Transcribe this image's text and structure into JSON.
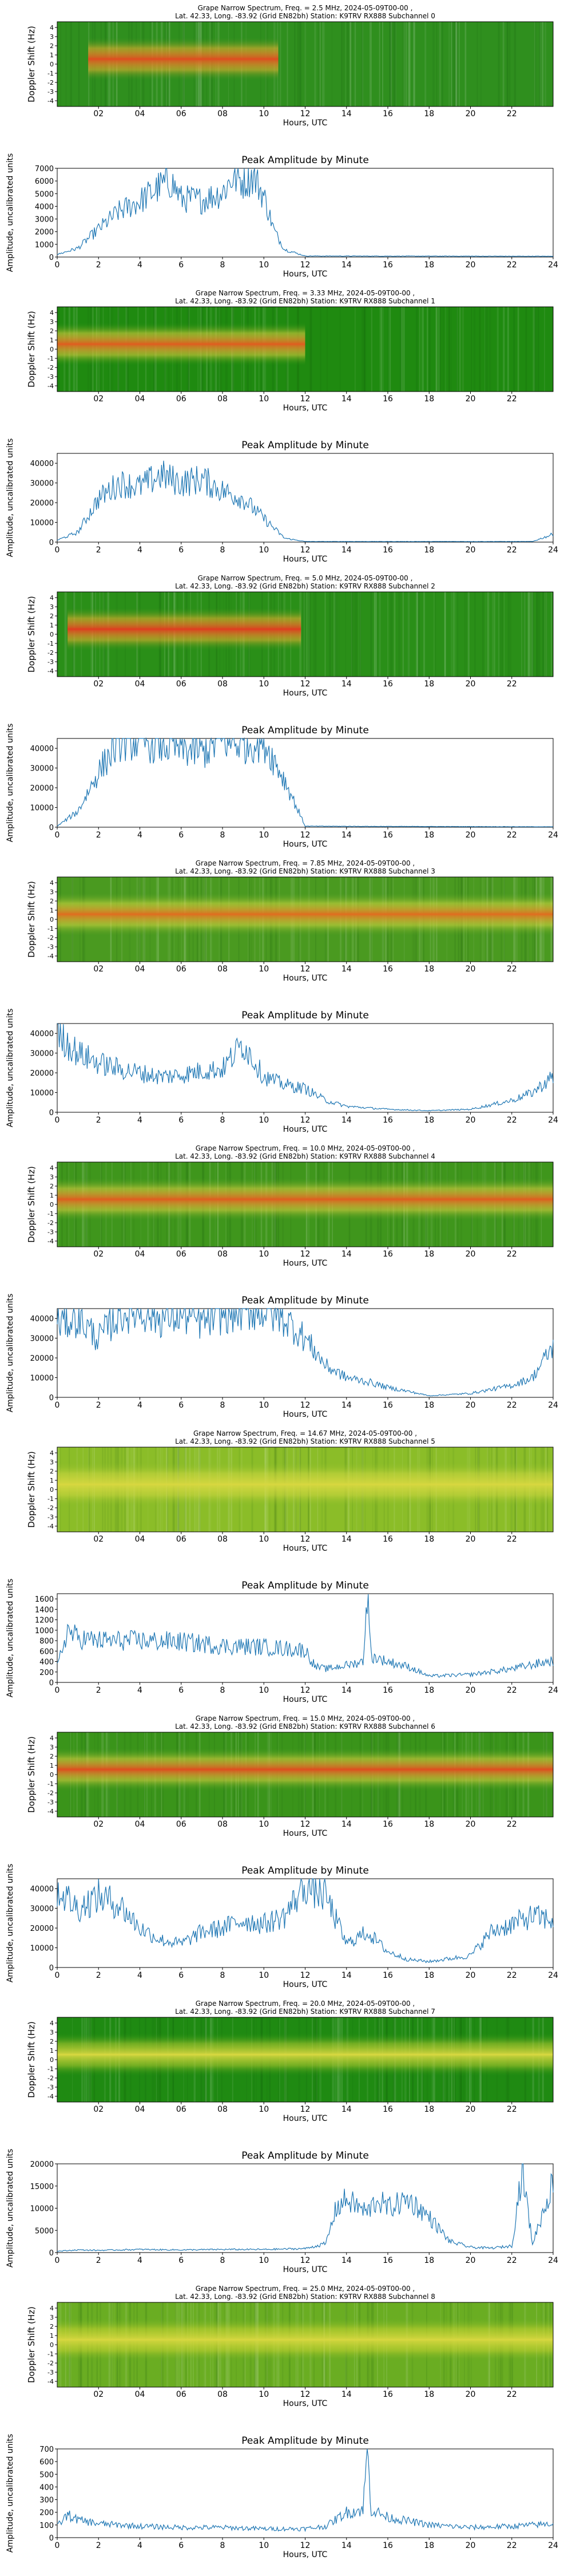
{
  "chart_data": {
    "type": "spectrogram-and-line",
    "x_tick_labels_spec": [
      "02",
      "04",
      "06",
      "08",
      "10",
      "12",
      "14",
      "16",
      "18",
      "20",
      "22"
    ],
    "x_tick_labels_amp": [
      "0",
      "2",
      "4",
      "6",
      "8",
      "10",
      "12",
      "14",
      "16",
      "18",
      "20",
      "22",
      "24"
    ],
    "x_axis_label": "Hours, UTC",
    "spec_y_label": "Doppler Shift (Hz)",
    "spec_y_ticks": [
      "4",
      "3",
      "2",
      "1",
      "0",
      "-1",
      "-2",
      "-3",
      "-4"
    ],
    "amp_title": "Peak Amplitude by Minute",
    "amp_y_label": "Amplitude, uncalibrated units",
    "x_range_hours": [
      0,
      24
    ],
    "panels": [
      {
        "title_line1": "Grape Narrow Spectrum, Freq. = 2.5 MHz, 2024-05-09T00-00 ,",
        "title_line2": "Lat.  42.33, Long. -83.92 (Grid EN82bh) Station: K9TRV RX888 Subchannel 0",
        "spec_colors": {
          "background": "#2f8f1e",
          "active": "#f0b030",
          "core": "#e05020"
        },
        "active_hours": [
          1.5,
          10.7
        ],
        "amp_ylim": [
          0,
          7000
        ],
        "amp_yticks": [
          0,
          1000,
          2000,
          3000,
          4000,
          5000,
          6000,
          7000
        ],
        "amp_hours": [
          0,
          1,
          2,
          3,
          4,
          5,
          5.5,
          6,
          7,
          8,
          8.5,
          9,
          9.5,
          10,
          10.5,
          11,
          12,
          24
        ],
        "amp_values": [
          200,
          700,
          2200,
          3600,
          4400,
          5600,
          6000,
          4600,
          4500,
          5100,
          6300,
          6000,
          6400,
          4800,
          2100,
          600,
          80,
          60
        ]
      },
      {
        "title_line1": "Grape Narrow Spectrum, Freq. = 3.33 MHz, 2024-05-09T00-00 ,",
        "title_line2": "Lat.  42.33, Long. -83.92 (Grid EN82bh) Station: K9TRV RX888 Subchannel 1",
        "spec_colors": {
          "background": "#1f8a10",
          "active": "#e8d040",
          "core": "#e06020"
        },
        "active_hours": [
          0,
          12
        ],
        "amp_ylim": [
          0,
          45000
        ],
        "amp_yticks": [
          0,
          10000,
          20000,
          30000,
          40000
        ],
        "amp_hours": [
          0,
          1,
          2,
          3,
          4,
          5,
          6,
          7,
          8,
          9,
          10,
          11,
          12,
          23,
          24
        ],
        "amp_values": [
          1000,
          5000,
          22000,
          30000,
          28000,
          34000,
          30000,
          32000,
          26000,
          22000,
          12000,
          2000,
          300,
          300,
          4000
        ]
      },
      {
        "title_line1": "Grape Narrow Spectrum, Freq. = 5.0 MHz, 2024-05-09T00-00 ,",
        "title_line2": "Lat.  42.33, Long. -83.92 (Grid EN82bh) Station: K9TRV RX888 Subchannel 2",
        "spec_colors": {
          "background": "#2a8f18",
          "active": "#f0b030",
          "core": "#e04020"
        },
        "active_hours": [
          0.5,
          11.8
        ],
        "amp_ylim": [
          0,
          45000
        ],
        "amp_yticks": [
          0,
          10000,
          20000,
          30000,
          40000
        ],
        "amp_hours": [
          0,
          1,
          2,
          3,
          4,
          5,
          6,
          7,
          8,
          9,
          10,
          11,
          12,
          24
        ],
        "amp_values": [
          500,
          8000,
          28000,
          44000,
          44000,
          42000,
          40000,
          38000,
          44000,
          42000,
          44000,
          24000,
          500,
          200
        ]
      },
      {
        "title_line1": "Grape Narrow Spectrum, Freq. = 7.85 MHz, 2024-05-09T00-00 ,",
        "title_line2": "Lat.  42.33, Long. -83.92 (Grid EN82bh) Station: K9TRV RX888 Subchannel 3",
        "spec_colors": {
          "background": "#4a9a20",
          "active": "#d8d840",
          "core": "#e07020"
        },
        "active_hours": [
          0,
          24
        ],
        "amp_ylim": [
          0,
          45000
        ],
        "amp_yticks": [
          0,
          10000,
          20000,
          30000,
          40000
        ],
        "amp_hours": [
          0,
          1,
          2,
          3,
          4,
          5,
          6,
          7,
          8,
          9,
          10,
          11,
          12,
          13,
          14,
          16,
          18,
          20,
          22,
          23,
          24
        ],
        "amp_values": [
          40000,
          30000,
          25000,
          22000,
          20000,
          18000,
          19000,
          21000,
          22000,
          35000,
          18000,
          14000,
          12000,
          6000,
          3000,
          1500,
          800,
          1500,
          6000,
          10000,
          18000
        ]
      },
      {
        "title_line1": "Grape Narrow Spectrum, Freq. = 10.0 MHz, 2024-05-09T00-00 ,",
        "title_line2": "Lat.  42.33, Long. -83.92 (Grid EN82bh) Station: K9TRV RX888 Subchannel 4",
        "spec_colors": {
          "background": "#3f961c",
          "active": "#e0d040",
          "core": "#e06020"
        },
        "active_hours": [
          0,
          24
        ],
        "amp_ylim": [
          0,
          45000
        ],
        "amp_yticks": [
          0,
          10000,
          20000,
          30000,
          40000
        ],
        "amp_hours": [
          0,
          1,
          2,
          3,
          4,
          5,
          6,
          7,
          8,
          9,
          10,
          11,
          12,
          13,
          14,
          15,
          16,
          17,
          18,
          20,
          22,
          23,
          24
        ],
        "amp_values": [
          38000,
          40000,
          30000,
          42000,
          44000,
          40000,
          42000,
          38000,
          42000,
          44000,
          44000,
          40000,
          30000,
          16000,
          10000,
          8000,
          5000,
          3000,
          800,
          2000,
          6000,
          10000,
          26000
        ]
      },
      {
        "title_line1": "Grape Narrow Spectrum, Freq. = 14.67 MHz, 2024-05-09T00-00 ,",
        "title_line2": "Lat.  42.33, Long. -83.92 (Grid EN82bh) Station: K9TRV RX888 Subchannel 5",
        "spec_colors": {
          "background": "#8bbd28",
          "active": "#d0d840",
          "core": "#d8d840"
        },
        "active_hours": [
          0,
          24
        ],
        "amp_ylim": [
          0,
          1700
        ],
        "amp_yticks": [
          0,
          200,
          400,
          600,
          800,
          1000,
          1200,
          1400,
          1600
        ],
        "amp_hours": [
          0,
          0.5,
          1,
          2,
          4,
          6,
          8,
          10,
          12,
          12.5,
          13,
          14,
          14.8,
          15,
          15.2,
          16,
          17,
          18,
          20,
          22,
          24
        ],
        "amp_values": [
          300,
          1000,
          850,
          800,
          800,
          780,
          700,
          680,
          620,
          300,
          260,
          330,
          400,
          1700,
          500,
          400,
          300,
          120,
          150,
          260,
          420
        ]
      },
      {
        "title_line1": "Grape Narrow Spectrum, Freq. = 15.0 MHz, 2024-05-09T00-00 ,",
        "title_line2": "Lat.  42.33, Long. -83.92 (Grid EN82bh) Station: K9TRV RX888 Subchannel 6",
        "spec_colors": {
          "background": "#3a941a",
          "active": "#e0d040",
          "core": "#e05020"
        },
        "active_hours": [
          0,
          24
        ],
        "amp_ylim": [
          0,
          45000
        ],
        "amp_yticks": [
          0,
          10000,
          20000,
          30000,
          40000
        ],
        "amp_hours": [
          0,
          1,
          2,
          3,
          4,
          5,
          6,
          7,
          8,
          9,
          10,
          11,
          12,
          13,
          14,
          15,
          16,
          17,
          18,
          20,
          21,
          22,
          23,
          24
        ],
        "amp_values": [
          40000,
          30000,
          36000,
          32000,
          20000,
          14000,
          12000,
          18000,
          20000,
          24000,
          22000,
          26000,
          42000,
          36000,
          12000,
          18000,
          8000,
          4000,
          3000,
          6000,
          18000,
          22000,
          26000,
          24000
        ]
      },
      {
        "title_line1": "Grape Narrow Spectrum, Freq. = 20.0 MHz, 2024-05-09T00-00 ,",
        "title_line2": "Lat.  42.33, Long. -83.92 (Grid EN82bh) Station: K9TRV RX888 Subchannel 7",
        "spec_colors": {
          "background": "#1f8a12",
          "active": "#b8cc30",
          "core": "#d8d840"
        },
        "active_hours": [
          0,
          24
        ],
        "amp_ylim": [
          0,
          20000
        ],
        "amp_yticks": [
          0,
          5000,
          10000,
          15000,
          20000
        ],
        "amp_hours": [
          0,
          1,
          2,
          4,
          6,
          8,
          10,
          12,
          13,
          13.5,
          14,
          15,
          15.5,
          16,
          17,
          18,
          19,
          20,
          21,
          22,
          22.5,
          23,
          24
        ],
        "amp_values": [
          300,
          600,
          500,
          700,
          600,
          700,
          700,
          900,
          2000,
          10000,
          12000,
          9000,
          12000,
          10000,
          12000,
          8000,
          2500,
          1200,
          1000,
          1500,
          19000,
          2000,
          16000
        ]
      },
      {
        "title_line1": "Grape Narrow Spectrum, Freq. = 25.0 MHz, 2024-05-09T00-00 ,",
        "title_line2": "Lat.  42.33, Long. -83.92 (Grid EN82bh) Station: K9TRV RX888 Subchannel 8",
        "spec_colors": {
          "background": "#6aad22",
          "active": "#c8d430",
          "core": "#d8d840"
        },
        "active_hours": [
          0,
          24
        ],
        "amp_ylim": [
          0,
          700
        ],
        "amp_yticks": [
          0,
          100,
          200,
          300,
          400,
          500,
          600,
          700
        ],
        "amp_hours": [
          0,
          0.5,
          1,
          2,
          4,
          6,
          8,
          10,
          12,
          13,
          14,
          14.8,
          15,
          15.2,
          16,
          18,
          20,
          22,
          24
        ],
        "amp_values": [
          90,
          180,
          140,
          110,
          90,
          80,
          80,
          70,
          70,
          90,
          200,
          220,
          690,
          220,
          160,
          100,
          80,
          90,
          110
        ]
      }
    ]
  }
}
